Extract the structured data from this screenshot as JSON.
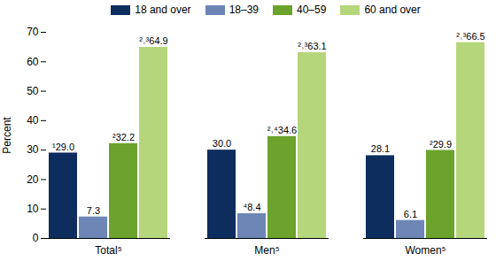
{
  "chart_data": {
    "type": "bar",
    "y_label": "Percent",
    "categories": [
      "Total⁵",
      "Men⁵",
      "Women⁵"
    ],
    "series": [
      {
        "name": "18 and over",
        "color": "#0e2d5f",
        "values": [
          29.0,
          30.0,
          28.1
        ],
        "value_labels": [
          "¹29.0",
          "30.0",
          "28.1"
        ]
      },
      {
        "name": "18–39",
        "color": "#6d86b6",
        "values": [
          7.3,
          8.4,
          6.1
        ],
        "value_labels": [
          "7.3",
          "⁴8.4",
          "6.1"
        ]
      },
      {
        "name": "40–59",
        "color": "#6ba32c",
        "values": [
          32.2,
          34.6,
          29.9
        ],
        "value_labels": [
          "²32.2",
          "²˒⁴34.6",
          "²29.9"
        ]
      },
      {
        "name": "60 and over",
        "color": "#b6d67c",
        "values": [
          64.9,
          63.1,
          66.5
        ],
        "value_labels": [
          "²˒³64.9",
          "²˒³63.1",
          "²˒³66.5"
        ]
      }
    ],
    "ylim": [
      0,
      70
    ],
    "yticks": [
      0,
      10,
      20,
      30,
      40,
      50,
      60,
      70
    ],
    "grid": false,
    "legend": "top",
    "data_labels": true
  }
}
